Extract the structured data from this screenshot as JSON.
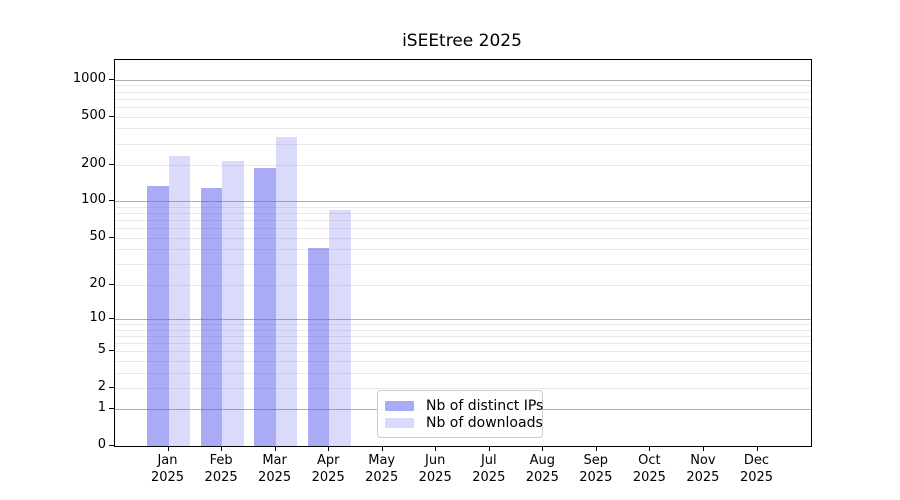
{
  "background_color": "#ffffff",
  "chart_data": {
    "type": "bar",
    "title": "iSEEtree 2025",
    "x_categories": [
      "Jan",
      "Feb",
      "Mar",
      "Apr",
      "May",
      "Jun",
      "Jul",
      "Aug",
      "Sep",
      "Oct",
      "Nov",
      "Dec"
    ],
    "x_year_label": "2025",
    "series": [
      {
        "name": "Nb of distinct IPs",
        "color": "rgba(85,87,235,0.5)",
        "values": [
          134,
          128,
          188,
          41,
          null,
          null,
          null,
          null,
          null,
          null,
          null,
          null
        ]
      },
      {
        "name": "Nb of downloads",
        "color": "rgba(85,87,235,0.22)",
        "values": [
          235,
          215,
          343,
          85,
          null,
          null,
          null,
          null,
          null,
          null,
          null,
          null
        ]
      }
    ],
    "y_scale": "log10(1+x)",
    "y_ticks": [
      0,
      1,
      2,
      5,
      10,
      20,
      50,
      100,
      200,
      500,
      1000
    ],
    "y_axis_max": 1455,
    "grid": {
      "major_values": [
        1,
        10,
        100,
        1000
      ],
      "minor_values": [
        2,
        3,
        4,
        5,
        6,
        7,
        8,
        9,
        20,
        30,
        40,
        50,
        60,
        70,
        80,
        90,
        200,
        300,
        400,
        500,
        600,
        700,
        800,
        900
      ],
      "major_color": "#b0b0b0",
      "minor_color": "#e9e9e9"
    },
    "legend_position": "lower center-left",
    "spine_color": "#000000"
  }
}
